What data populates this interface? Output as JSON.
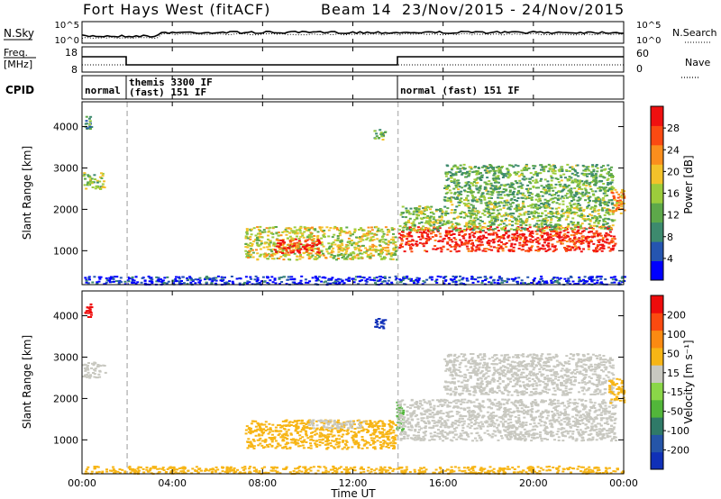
{
  "header": {
    "station": "Fort Hays West (fitACF)",
    "beam": "Beam 14",
    "date_range": "23/Nov/2015 - 24/Nov/2015"
  },
  "noise_panel": {
    "left_label": "N.Sky",
    "left_ticks": [
      "10^5",
      "10^0"
    ],
    "right_ticks": [
      "10^5",
      "10^0"
    ],
    "right_label": "N.Search"
  },
  "freq_panel": {
    "left_label_1": "Freq.",
    "left_label_2": "[MHz]",
    "left_ticks": [
      "18",
      "8"
    ],
    "right_ticks": [
      "60",
      "0"
    ],
    "right_label": "Nave"
  },
  "cpid_panel": {
    "label": "CPID",
    "segments": [
      {
        "start_hour": 0.0,
        "end_hour": 2.0,
        "text": "normal"
      },
      {
        "start_hour": 2.0,
        "end_hour": 14.0,
        "text": "themis 3300 IF",
        "text2": "(fast) 151 IF"
      },
      {
        "start_hour": 14.0,
        "end_hour": 24.0,
        "text": "normal (fast) 151 IF"
      }
    ]
  },
  "x_axis": {
    "label": "Time UT",
    "ticks": [
      "00:00",
      "04:00",
      "08:00",
      "12:00",
      "16:00",
      "20:00",
      "00:00"
    ],
    "range_hours": [
      0,
      24
    ]
  },
  "colors": {
    "line": "#000000",
    "dashed_marker": "#bbbbbb",
    "ground_scatter": "#c8c8c0"
  },
  "chart_data": [
    {
      "type": "heatmap",
      "name": "power",
      "ylabel": "Slant Range [km]",
      "yticks": [
        "1000",
        "2000",
        "3000",
        "4000"
      ],
      "ylim_km": [
        180,
        4600
      ],
      "colorbar_label": "Power [dB]",
      "colorbar_ticks": [
        "4",
        "8",
        "12",
        "16",
        "20",
        "24",
        "28"
      ],
      "colorbar_range": [
        0,
        32
      ],
      "colorbar_colors": [
        "#0000ff",
        "#2555b0",
        "#3d8a6e",
        "#5da84a",
        "#9ccc3c",
        "#f3c22a",
        "#fb8e1d",
        "#fb4a12",
        "#ef1010"
      ],
      "regions": [
        {
          "t0": 0.1,
          "t1": 0.4,
          "r0": 3950,
          "r1": 4300,
          "level": 0.35
        },
        {
          "t0": 0.0,
          "t1": 1.0,
          "r0": 2500,
          "r1": 2900,
          "level": 0.45
        },
        {
          "t0": 7.2,
          "t1": 13.9,
          "r0": 800,
          "r1": 1600,
          "level": 0.55
        },
        {
          "t0": 8.5,
          "t1": 10.5,
          "r0": 950,
          "r1": 1300,
          "level": 0.9
        },
        {
          "t0": 12.9,
          "t1": 13.4,
          "r0": 3700,
          "r1": 3950,
          "level": 0.4
        },
        {
          "t0": 14.0,
          "t1": 23.6,
          "r0": 1000,
          "r1": 1600,
          "level": 0.92
        },
        {
          "t0": 14.0,
          "t1": 23.6,
          "r0": 1500,
          "r1": 2100,
          "level": 0.45
        },
        {
          "t0": 16.0,
          "t1": 23.5,
          "r0": 2100,
          "r1": 3100,
          "level": 0.4
        },
        {
          "t0": 23.3,
          "t1": 24.0,
          "r0": 1900,
          "r1": 2500,
          "level": 0.7
        },
        {
          "t0": 0.0,
          "t1": 24.0,
          "r0": 200,
          "r1": 400,
          "level": 0.1
        }
      ]
    },
    {
      "type": "heatmap",
      "name": "velocity",
      "ylabel": "Slant Range [km]",
      "yticks": [
        "1000",
        "2000",
        "3000",
        "4000"
      ],
      "ylim_km": [
        180,
        4600
      ],
      "colorbar_label": "Velocity [m s⁻¹]",
      "colorbar_ticks": [
        "200",
        "100",
        "50",
        "15",
        "-15",
        "-50",
        "-100",
        "-200"
      ],
      "colorbar_colors": [
        "#1030b8",
        "#2555a8",
        "#2f7a68",
        "#52b63a",
        "#8ad648",
        "#c8c8c0",
        "#f7b515",
        "#fb8a12",
        "#fb4a10",
        "#ee0c0c"
      ],
      "regions": [
        {
          "t0": 0.1,
          "t1": 0.4,
          "r0": 3950,
          "r1": 4300,
          "color": "#ee0c0c"
        },
        {
          "t0": 0.0,
          "t1": 1.0,
          "r0": 2500,
          "r1": 2900,
          "color": "#c8c8c0"
        },
        {
          "t0": 7.2,
          "t1": 13.9,
          "r0": 800,
          "r1": 1500,
          "color": "#f7b515"
        },
        {
          "t0": 10.0,
          "t1": 12.5,
          "r0": 1300,
          "r1": 1500,
          "color": "#c8c8c0"
        },
        {
          "t0": 12.9,
          "t1": 13.4,
          "r0": 3700,
          "r1": 3950,
          "color": "#1030b8"
        },
        {
          "t0": 13.9,
          "t1": 14.2,
          "r0": 1200,
          "r1": 2000,
          "color": "#52b63a"
        },
        {
          "t0": 14.0,
          "t1": 23.6,
          "r0": 1000,
          "r1": 2000,
          "color": "#c8c8c0"
        },
        {
          "t0": 16.0,
          "t1": 23.5,
          "r0": 2100,
          "r1": 3100,
          "color": "#c8c8c0"
        },
        {
          "t0": 23.3,
          "t1": 24.0,
          "r0": 1900,
          "r1": 2500,
          "color": "#f7b515"
        },
        {
          "t0": 0.0,
          "t1": 24.0,
          "r0": 200,
          "r1": 380,
          "color": "#f7b515"
        }
      ]
    }
  ]
}
